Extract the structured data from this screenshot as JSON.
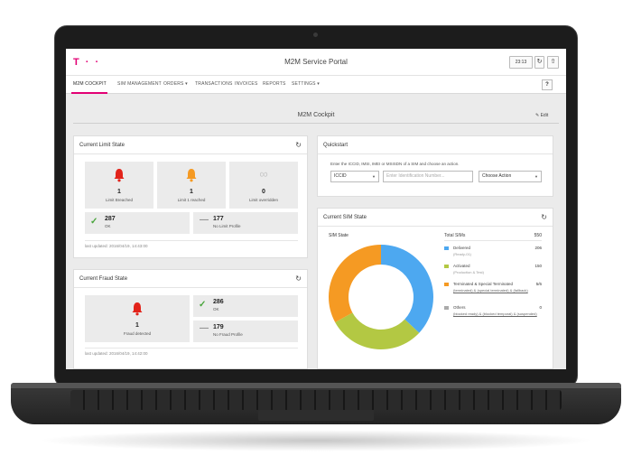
{
  "app": {
    "logo": "T · ·",
    "title": "M2M Service Portal",
    "time_button": "23:13",
    "refresh_icon": "refresh-icon",
    "upload_icon": "upload-icon"
  },
  "nav": {
    "items": [
      {
        "label": "M2M COCKPIT",
        "active": true
      },
      {
        "label": "SIM MANAGEMENT"
      },
      {
        "label": "ORDERS ▾"
      },
      {
        "label": "TRANSACTIONS"
      },
      {
        "label": "INVOICES"
      },
      {
        "label": "REPORTS"
      },
      {
        "label": "SETTINGS ▾"
      }
    ],
    "help_label": "?"
  },
  "page": {
    "title": "M2M Cockpit",
    "edit_label": "Edit"
  },
  "limit_state": {
    "title": "Current Limit State",
    "tiles": [
      {
        "value": "1",
        "label": "Limit Breached",
        "icon": "bell-icon",
        "color": "#e2231a"
      },
      {
        "value": "1",
        "label": "Limit 1 reached",
        "icon": "bell-icon",
        "color": "#f59a23"
      },
      {
        "value": "0",
        "label": "Limit overridden",
        "icon": "infinity-icon",
        "color": "#cccccc"
      }
    ],
    "rows": [
      {
        "value": "287",
        "label": "OK",
        "icon": "check-icon"
      },
      {
        "value": "177",
        "label": "No Limit Profile",
        "icon": "dash-icon"
      }
    ],
    "updated": "last updated: 2016/04/19, 14:43:00"
  },
  "fraud_state": {
    "title": "Current Fraud State",
    "tile": {
      "value": "1",
      "label": "Fraud detected",
      "icon": "bell-icon",
      "color": "#e2231a"
    },
    "rows": [
      {
        "value": "286",
        "label": "OK",
        "icon": "check-icon"
      },
      {
        "value": "179",
        "label": "No Fraud Profile",
        "icon": "dash-icon"
      }
    ],
    "updated": "last updated: 2016/04/19, 14:42:00"
  },
  "quickstart": {
    "title": "Quickstart",
    "instruction": "Enter the ICCID, IMSI, IMEI or MSISDN of a SIM and choose an action.",
    "id_type": "ICCID",
    "input_placeholder": "Enter Identification Number...",
    "action_label": "Choose Action"
  },
  "sim_state": {
    "title": "Current SIM State",
    "chart_title": "SIM State",
    "total_label": "Total SIMs",
    "total_value": "550",
    "legend": [
      {
        "name": "Delivered",
        "sub": "(Ready-01)",
        "value": "206",
        "color": "#4da8f0"
      },
      {
        "name": "Activated",
        "sub": "(Production & Test)",
        "value": "150",
        "color": "#b3c843"
      },
      {
        "name": "Terminated & Special Terminated",
        "sub": "(terminated) & (special terminated) & (fallback)",
        "value": "5/6",
        "color": "#f59a23"
      },
      {
        "name": "Others",
        "sub": "(blocked ready) & (blocked temporal) & (suspended)",
        "value": "0",
        "color": "#aaaaaa"
      }
    ]
  },
  "chart_data": {
    "type": "pie",
    "title": "SIM State",
    "categories": [
      "Delivered",
      "Activated",
      "Terminated & Special Terminated",
      "Others"
    ],
    "values": [
      37,
      30,
      33,
      0
    ],
    "colors": [
      "#4da8f0",
      "#b3c843",
      "#f59a23",
      "#aaaaaa"
    ],
    "donut": true
  }
}
